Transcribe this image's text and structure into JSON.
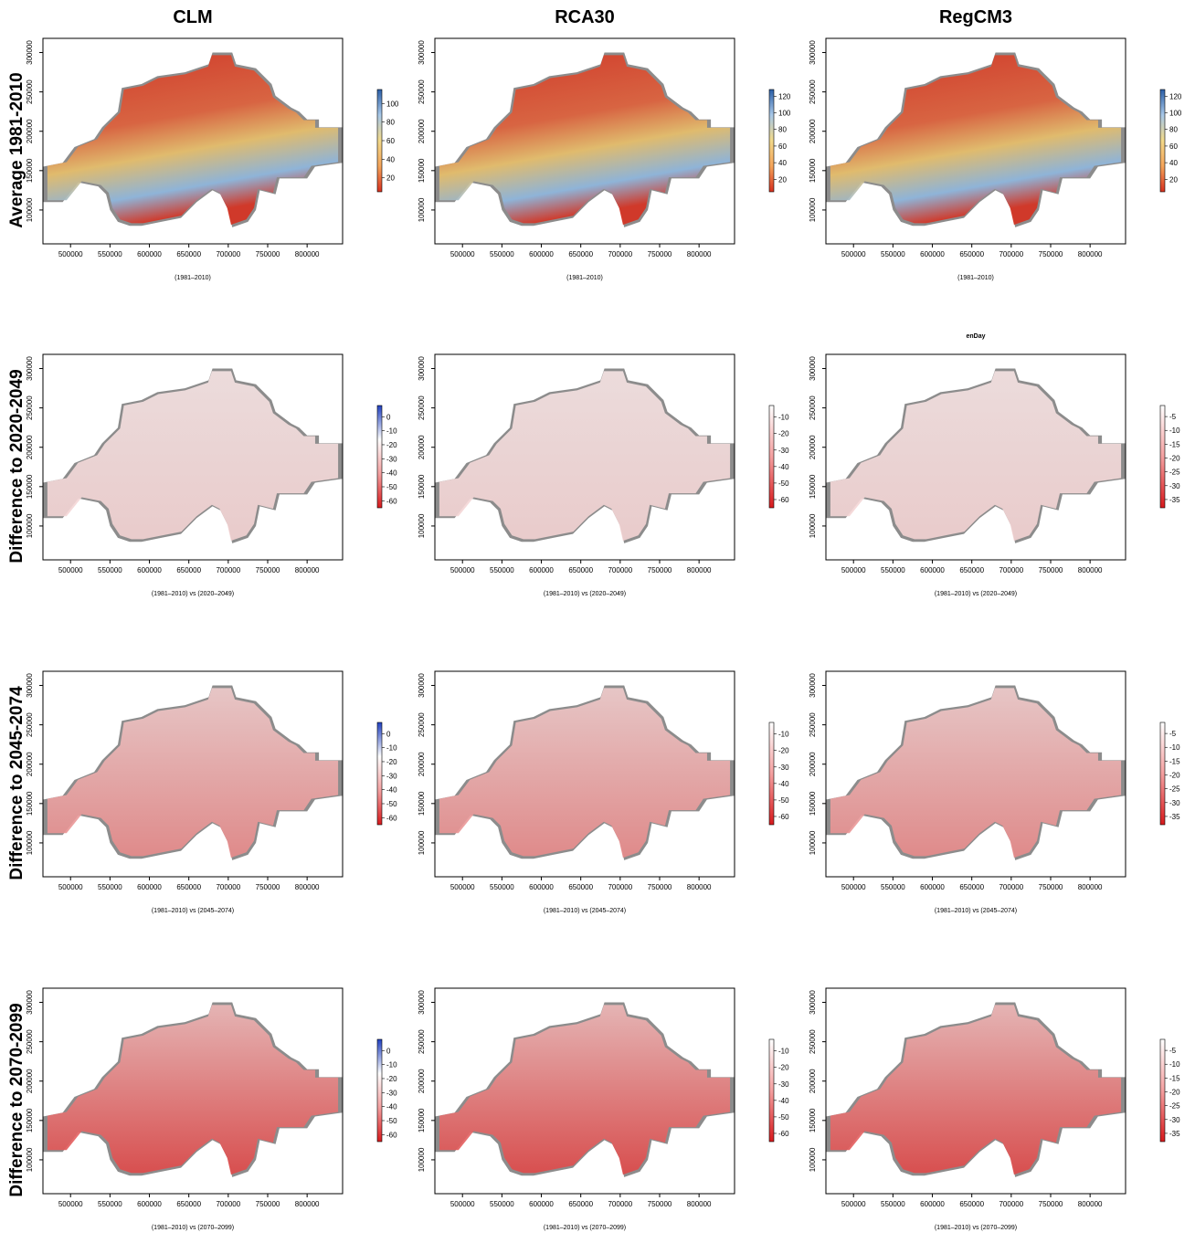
{
  "columns": [
    "CLM",
    "RCA30",
    "RegCM3"
  ],
  "rows": [
    "Average 1981-2010",
    "Difference to 2020-2049",
    "Difference to 2045-2074",
    "Difference to 2070-2099"
  ],
  "axes": {
    "xlim": [
      465000,
      845000
    ],
    "xticks": [
      500000,
      550000,
      600000,
      650000,
      700000,
      750000,
      800000
    ],
    "ylim": [
      57000,
      318000
    ],
    "yticks": [
      100000,
      150000,
      200000,
      250000,
      300000
    ]
  },
  "panels": [
    {
      "caption": "(1981–2010)",
      "colorbar": {
        "lim": [
          5,
          115
        ],
        "ticks": [
          20,
          40,
          60,
          80,
          100
        ],
        "colors": [
          "#d7301f",
          "#f4a45a",
          "#f2d98a",
          "#a8c8e8",
          "#2b5fa8"
        ]
      }
    },
    {
      "caption": "(1981–2010)",
      "colorbar": {
        "lim": [
          5,
          128
        ],
        "ticks": [
          20,
          40,
          60,
          80,
          100,
          120
        ],
        "colors": [
          "#d7301f",
          "#f4a45a",
          "#f2d98a",
          "#a8c8e8",
          "#2b5fa8"
        ]
      }
    },
    {
      "caption": "(1981–2010)",
      "colorbar": {
        "lim": [
          5,
          128
        ],
        "ticks": [
          20,
          40,
          60,
          80,
          100,
          120
        ],
        "colors": [
          "#d7301f",
          "#f4a45a",
          "#f2d98a",
          "#a8c8e8",
          "#2b5fa8"
        ]
      }
    },
    {
      "caption": "(1981–2010) vs (2020–2049)",
      "colorbar": {
        "lim": [
          -65,
          8
        ],
        "ticks": [
          -60,
          -50,
          -40,
          -30,
          -20,
          -10,
          0
        ],
        "colors": [
          "#d7191c",
          "#f4a0a0",
          "#ffffff",
          "#2040c0"
        ]
      }
    },
    {
      "caption": "(1981–2010) vs (2020–2049)",
      "colorbar": {
        "lim": [
          -65,
          -3
        ],
        "ticks": [
          -60,
          -50,
          -40,
          -30,
          -20,
          -10
        ],
        "colors": [
          "#d7191c",
          "#f4a0a0",
          "#ffffff"
        ]
      }
    },
    {
      "title": "enDay",
      "caption": "(1981–2010) vs (2020–2049)",
      "colorbar": {
        "lim": [
          -38,
          -1
        ],
        "ticks": [
          -35,
          -30,
          -25,
          -20,
          -15,
          -10,
          -5
        ],
        "colors": [
          "#d7191c",
          "#f4a0a0",
          "#ffffff"
        ]
      }
    },
    {
      "caption": "(1981–2010) vs (2045–2074)",
      "colorbar": {
        "lim": [
          -65,
          8
        ],
        "ticks": [
          -60,
          -50,
          -40,
          -30,
          -20,
          -10,
          0
        ],
        "colors": [
          "#d7191c",
          "#f4a0a0",
          "#ffffff",
          "#2040c0"
        ]
      }
    },
    {
      "caption": "(1981–2010) vs (2045–2074)",
      "colorbar": {
        "lim": [
          -65,
          -3
        ],
        "ticks": [
          -60,
          -50,
          -40,
          -30,
          -20,
          -10
        ],
        "colors": [
          "#d7191c",
          "#f4a0a0",
          "#ffffff"
        ]
      }
    },
    {
      "caption": "(1981–2010) vs (2045–2074)",
      "colorbar": {
        "lim": [
          -38,
          -1
        ],
        "ticks": [
          -35,
          -30,
          -25,
          -20,
          -15,
          -10,
          -5
        ],
        "colors": [
          "#d7191c",
          "#f4a0a0",
          "#ffffff"
        ]
      }
    },
    {
      "caption": "(1981–2010) vs (2070–2099)",
      "colorbar": {
        "lim": [
          -65,
          8
        ],
        "ticks": [
          -60,
          -50,
          -40,
          -30,
          -20,
          -10,
          0
        ],
        "colors": [
          "#d7191c",
          "#f4a0a0",
          "#ffffff",
          "#2040c0"
        ]
      }
    },
    {
      "caption": "(1981–2010) vs (2070–2099)",
      "colorbar": {
        "lim": [
          -65,
          -3
        ],
        "ticks": [
          -60,
          -50,
          -40,
          -30,
          -20,
          -10
        ],
        "colors": [
          "#d7191c",
          "#f4a0a0",
          "#ffffff"
        ]
      }
    },
    {
      "caption": "(1981–2010) vs (2070–2099)",
      "colorbar": {
        "lim": [
          -38,
          -1
        ],
        "ticks": [
          -35,
          -30,
          -25,
          -20,
          -15,
          -10,
          -5
        ],
        "colors": [
          "#d7191c",
          "#f4a0a0",
          "#ffffff"
        ]
      }
    }
  ]
}
